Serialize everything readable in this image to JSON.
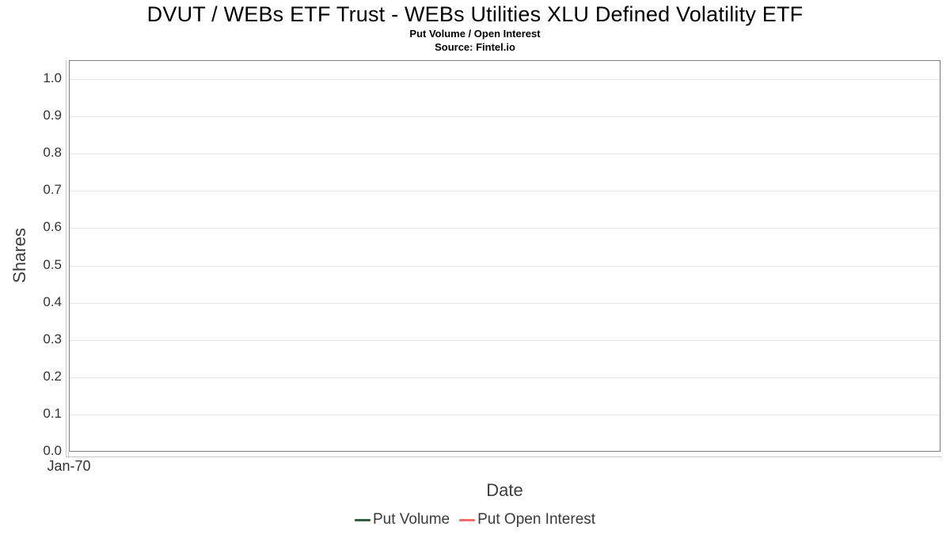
{
  "chart_data": {
    "type": "line",
    "title": "DVUT / WEBs ETF Trust - WEBs Utilities XLU Defined Volatility ETF",
    "subtitle": "Put Volume / Open Interest",
    "source": "Source: Fintel.io",
    "xlabel": "Date",
    "ylabel": "Shares",
    "xticks": [
      "Jan-70"
    ],
    "yticks": [
      "0.0",
      "0.1",
      "0.2",
      "0.3",
      "0.4",
      "0.5",
      "0.6",
      "0.7",
      "0.8",
      "0.9",
      "1.0"
    ],
    "ylim": [
      0.0,
      1.05
    ],
    "grid": true,
    "legend_position": "bottom",
    "plot_empty": true,
    "series": [
      {
        "name": "Put Volume",
        "color": "#2d5f41",
        "values": []
      },
      {
        "name": "Put Open Interest",
        "color": "#f96b6b",
        "values": []
      }
    ],
    "colors": {
      "plot_border": "#7b7b7b",
      "gridline": "#e5e5e5",
      "axis_line": "#c9c9c9",
      "tick_text": "#333333",
      "axis_title_text": "#3d3d3d",
      "title_text": "#000000"
    }
  }
}
